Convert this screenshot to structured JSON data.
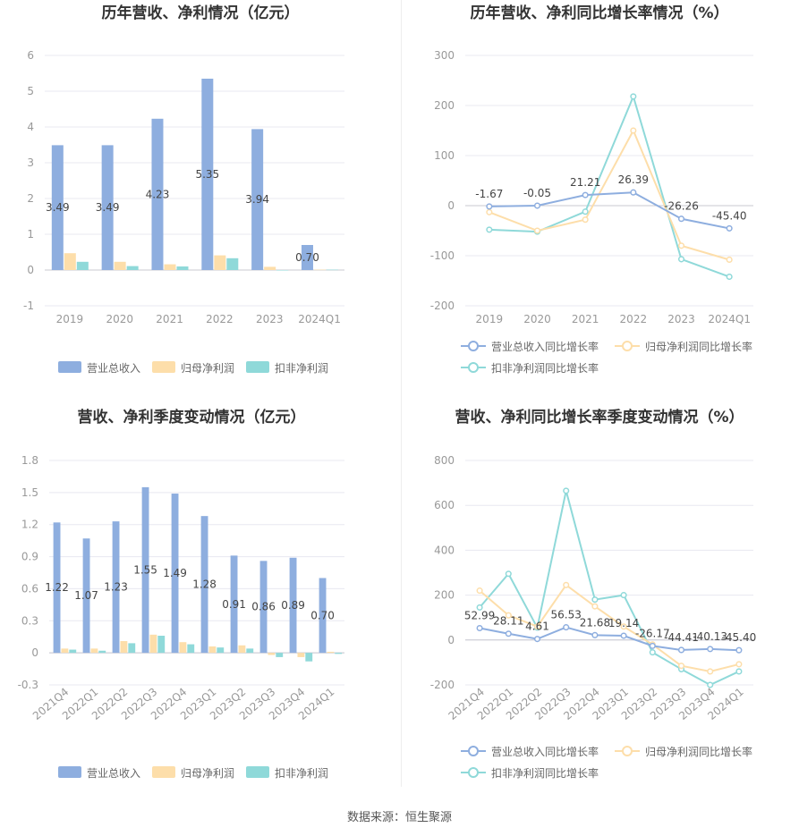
{
  "footer": {
    "source": "数据来源：恒生聚源"
  },
  "colors": {
    "revenue": "#8eaedf",
    "parent_profit": "#fddeaa",
    "deducted_profit": "#8fd9d9",
    "grid": "#e8e8f0",
    "axis_text": "#999999",
    "label_text": "#444444",
    "title_text": "#333333"
  },
  "chart_data": [
    {
      "id": "annual_values",
      "type": "bar",
      "title": "历年营收、净利情况（亿元）",
      "categories": [
        "2019",
        "2020",
        "2021",
        "2022",
        "2023",
        "2024Q1"
      ],
      "ylim": [
        -1,
        6
      ],
      "yticks": [
        "6",
        "5",
        "4",
        "3",
        "2",
        "1",
        "0",
        "-1"
      ],
      "series": [
        {
          "name": "营业总收入",
          "values": [
            3.49,
            3.49,
            4.23,
            5.35,
            3.94,
            0.7
          ],
          "labels": [
            "3.49",
            "3.49",
            "4.23",
            "5.35",
            "3.94",
            "0.70"
          ]
        },
        {
          "name": "归母净利润",
          "values": [
            0.47,
            0.23,
            0.16,
            0.41,
            0.09,
            0.01
          ]
        },
        {
          "name": "扣非净利润",
          "values": [
            0.23,
            0.11,
            0.1,
            0.33,
            0.0,
            0.01
          ]
        }
      ],
      "legend_position": "bottom",
      "grid": true
    },
    {
      "id": "annual_growth",
      "type": "line",
      "title": "历年营收、净利同比增长率情况（%）",
      "categories": [
        "2019",
        "2020",
        "2021",
        "2022",
        "2023",
        "2024Q1"
      ],
      "ylim": [
        -200,
        300
      ],
      "yticks": [
        "300",
        "200",
        "100",
        "0",
        "-100",
        "-200"
      ],
      "series": [
        {
          "name": "营业总收入同比增长率",
          "values": [
            -1.67,
            -0.05,
            21.21,
            26.39,
            -26.26,
            -45.4
          ],
          "labels": [
            "-1.67",
            "-0.05",
            "21.21",
            "26.39",
            "-26.26",
            "-45.40"
          ]
        },
        {
          "name": "归母净利润同比增长率",
          "values": [
            -13,
            -50,
            -28,
            150,
            -80,
            -108
          ]
        },
        {
          "name": "扣非净利润同比增长率",
          "values": [
            -48,
            -52,
            -12,
            218,
            -107,
            -142
          ]
        }
      ],
      "legend_position": "bottom",
      "grid": true
    },
    {
      "id": "quarterly_values",
      "type": "bar",
      "title": "营收、净利季度变动情况（亿元）",
      "categories": [
        "2021Q4",
        "2022Q1",
        "2022Q2",
        "2022Q3",
        "2022Q4",
        "2023Q1",
        "2023Q2",
        "2023Q3",
        "2023Q4",
        "2024Q1"
      ],
      "ylim": [
        -0.3,
        1.8
      ],
      "yticks": [
        "1.8",
        "1.5",
        "1.2",
        "0.9",
        "0.6",
        "0.3",
        "0",
        "-0.3"
      ],
      "series": [
        {
          "name": "营业总收入",
          "values": [
            1.22,
            1.07,
            1.23,
            1.55,
            1.49,
            1.28,
            0.91,
            0.86,
            0.89,
            0.7
          ],
          "labels": [
            "1.22",
            "1.07",
            "1.23",
            "1.55",
            "1.49",
            "1.28",
            "0.91",
            "0.86",
            "0.89",
            "0.70"
          ]
        },
        {
          "name": "归母净利润",
          "values": [
            0.04,
            0.04,
            0.11,
            0.17,
            0.1,
            0.06,
            0.07,
            -0.02,
            -0.04,
            0.01
          ]
        },
        {
          "name": "扣非净利润",
          "values": [
            0.03,
            0.02,
            0.09,
            0.16,
            0.08,
            0.05,
            0.04,
            -0.04,
            -0.08,
            -0.01
          ]
        }
      ],
      "legend_position": "bottom",
      "grid": true
    },
    {
      "id": "quarterly_growth",
      "type": "line",
      "title": "营收、净利同比增长率季度变动情况（%）",
      "categories": [
        "2021Q4",
        "2022Q1",
        "2022Q2",
        "2022Q3",
        "2022Q4",
        "2023Q1",
        "2023Q2",
        "2023Q3",
        "2023Q4",
        "2024Q1"
      ],
      "ylim": [
        -200,
        800
      ],
      "yticks": [
        "800",
        "600",
        "400",
        "200",
        "0",
        "-200"
      ],
      "series": [
        {
          "name": "营业总收入同比增长率",
          "values": [
            52.99,
            28.11,
            4.61,
            56.53,
            21.68,
            19.14,
            -26.17,
            -44.41,
            -40.13,
            -45.4
          ],
          "labels": [
            "52.99",
            "28.11",
            "4.61",
            "56.53",
            "21.68",
            "19.14",
            "-26.17",
            "-44.41",
            "-40.13",
            "-45.40"
          ]
        },
        {
          "name": "归母净利润同比增长率",
          "values": [
            220,
            110,
            60,
            245,
            150,
            60,
            -20,
            -115,
            -140,
            -108
          ]
        },
        {
          "name": "扣非净利润同比增长率",
          "values": [
            145,
            295,
            55,
            665,
            180,
            200,
            -55,
            -130,
            -200,
            -140
          ]
        }
      ],
      "legend_position": "bottom",
      "grid": true
    }
  ]
}
